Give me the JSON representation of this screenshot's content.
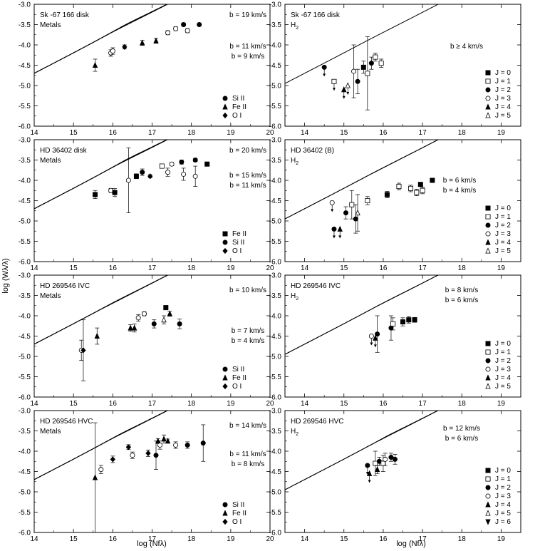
{
  "figure": {
    "x_axis_title": "log (Nfλ)",
    "y_axis_title": "log (Wλ/λ)"
  },
  "chart_data": [
    {
      "type": "scatter",
      "panel": "sk-metals",
      "title": "Sk -67 166  disk",
      "subtitle": "Metals",
      "xlim": [
        14,
        20
      ],
      "ylim": [
        -6.0,
        -3.0
      ],
      "xticks": [
        "14",
        "15",
        "16",
        "17",
        "18",
        "19",
        "20"
      ],
      "yticks": [
        "-3.0",
        "-3.5",
        "-4.0",
        "-4.5",
        "-5.0",
        "-5.5",
        "-6.0"
      ],
      "curve_labels": [
        "b = 19 km/s",
        "b = 11 km/s",
        "b = 9 km/s"
      ],
      "curves": [
        {
          "b": 19
        },
        {
          "b": 11
        },
        {
          "b": 9
        }
      ],
      "legend": [
        {
          "marker": "circle",
          "label": "Si II"
        },
        {
          "marker": "triangle",
          "label": "Fe II"
        },
        {
          "marker": "diamond",
          "label": "O I"
        }
      ],
      "points": [
        {
          "x": 15.55,
          "y": -4.5,
          "err": 0.15,
          "m": "triangle"
        },
        {
          "x": 15.95,
          "y": -4.2,
          "err": 0.08,
          "m": "open-circle"
        },
        {
          "x": 16.0,
          "y": -4.15,
          "err": 0.08,
          "m": "open-circle"
        },
        {
          "x": 16.3,
          "y": -4.05,
          "err": 0.05,
          "m": "diamond"
        },
        {
          "x": 16.75,
          "y": -3.95,
          "err": 0.06,
          "m": "triangle"
        },
        {
          "x": 17.1,
          "y": -3.9,
          "err": 0.06,
          "m": "triangle"
        },
        {
          "x": 17.4,
          "y": -3.7,
          "err": 0.05,
          "m": "open-circle"
        },
        {
          "x": 17.6,
          "y": -3.6,
          "err": 0.05,
          "m": "open-circle"
        },
        {
          "x": 17.8,
          "y": -3.5,
          "err": 0.04,
          "m": "circle"
        },
        {
          "x": 17.9,
          "y": -3.65,
          "err": 0.05,
          "m": "open-circle"
        },
        {
          "x": 18.2,
          "y": -3.5,
          "err": 0.03,
          "m": "circle"
        }
      ]
    },
    {
      "type": "scatter",
      "panel": "sk-h2",
      "title": "Sk -67 166  disk",
      "subtitle": "H2",
      "xlim": [
        13.5,
        19.5
      ],
      "ylim": [
        -6.0,
        -3.0
      ],
      "xticks": [
        "14",
        "15",
        "16",
        "17",
        "18",
        "19"
      ],
      "yticks": [
        "-3.0",
        "-3.5",
        "-4.0",
        "-4.5",
        "-5.0",
        "-5.5",
        "-6.0"
      ],
      "curve_labels": [
        "b ≥ 4 km/s"
      ],
      "curves": [
        {
          "b": 4
        }
      ],
      "legend": [
        {
          "marker": "square",
          "label": "J = 0"
        },
        {
          "marker": "open-square",
          "label": "J = 1"
        },
        {
          "marker": "circle",
          "label": "J = 2"
        },
        {
          "marker": "open-circle",
          "label": "J = 3"
        },
        {
          "marker": "triangle",
          "label": "J = 4"
        },
        {
          "marker": "open-triangle",
          "label": "J = 5"
        }
      ],
      "points": [
        {
          "x": 14.5,
          "y": -4.55,
          "err": 0,
          "m": "circle",
          "upper": true
        },
        {
          "x": 14.75,
          "y": -4.9,
          "err": 0,
          "m": "open-square",
          "upper": true
        },
        {
          "x": 15.0,
          "y": -5.1,
          "err": 0,
          "m": "triangle",
          "upper": true
        },
        {
          "x": 15.1,
          "y": -5.0,
          "err": 0,
          "m": "open-triangle",
          "upper": true
        },
        {
          "x": 15.25,
          "y": -4.65,
          "err": 0.65,
          "m": "open-circle"
        },
        {
          "x": 15.35,
          "y": -4.9,
          "err": 0.3,
          "m": "circle"
        },
        {
          "x": 15.5,
          "y": -4.55,
          "err": 0.15,
          "m": "square"
        },
        {
          "x": 15.6,
          "y": -4.7,
          "err": 0.9,
          "m": "open-square"
        },
        {
          "x": 15.7,
          "y": -4.45,
          "err": 0.15,
          "m": "circle"
        },
        {
          "x": 15.8,
          "y": -4.3,
          "err": 0.1,
          "m": "open-square"
        },
        {
          "x": 15.95,
          "y": -4.45,
          "err": 0.1,
          "m": "open-square"
        }
      ]
    },
    {
      "type": "scatter",
      "panel": "hd36-metals",
      "title": "HD 36402  disk",
      "subtitle": "Metals",
      "xlim": [
        14,
        20
      ],
      "ylim": [
        -6.0,
        -3.0
      ],
      "xticks": [
        "14",
        "15",
        "16",
        "17",
        "18",
        "19",
        "20"
      ],
      "yticks": [
        "-3.0",
        "-3.5",
        "-4.0",
        "-4.5",
        "-5.0",
        "-5.5",
        "-6.0"
      ],
      "curve_labels": [
        "b = 20 km/s",
        "b = 15 km/s",
        "b = 11 km/s"
      ],
      "curves": [
        {
          "b": 20
        },
        {
          "b": 15
        },
        {
          "b": 11
        }
      ],
      "legend": [
        {
          "marker": "square",
          "label": "Fe II"
        },
        {
          "marker": "circle",
          "label": "Si II"
        },
        {
          "marker": "diamond",
          "label": "O I"
        }
      ],
      "points": [
        {
          "x": 15.55,
          "y": -4.35,
          "err": 0.1,
          "m": "square"
        },
        {
          "x": 15.95,
          "y": -4.25,
          "err": 0.05,
          "m": "open-circle"
        },
        {
          "x": 16.05,
          "y": -4.3,
          "err": 0.1,
          "m": "square"
        },
        {
          "x": 16.4,
          "y": -4.0,
          "err": 0.8,
          "m": "open-circle"
        },
        {
          "x": 16.6,
          "y": -3.9,
          "err": 0.06,
          "m": "square"
        },
        {
          "x": 16.75,
          "y": -3.8,
          "err": 0.08,
          "m": "circle"
        },
        {
          "x": 17.25,
          "y": -3.65,
          "err": 0.05,
          "m": "open-square"
        },
        {
          "x": 17.4,
          "y": -3.8,
          "err": 0.1,
          "m": "open-circle"
        },
        {
          "x": 17.5,
          "y": -3.6,
          "err": 0.04,
          "m": "open-circle"
        },
        {
          "x": 17.75,
          "y": -3.55,
          "err": 0.05,
          "m": "circle"
        },
        {
          "x": 17.8,
          "y": -3.85,
          "err": 0.15,
          "m": "open-circle"
        },
        {
          "x": 18.1,
          "y": -3.5,
          "err": 0.04,
          "m": "circle"
        },
        {
          "x": 18.1,
          "y": -3.9,
          "err": 0.25,
          "m": "open-circle"
        },
        {
          "x": 18.4,
          "y": -3.6,
          "err": 0.04,
          "m": "square"
        },
        {
          "x": 16.95,
          "y": -3.9,
          "err": 0.04,
          "m": "diamond"
        }
      ]
    },
    {
      "type": "scatter",
      "panel": "hd36-h2",
      "title": "HD 36402 (B)",
      "subtitle": "H2",
      "xlim": [
        13.5,
        19.5
      ],
      "ylim": [
        -6.0,
        -3.0
      ],
      "xticks": [
        "14",
        "15",
        "16",
        "17",
        "18",
        "19"
      ],
      "yticks": [
        "-3.0",
        "-3.5",
        "-4.0",
        "-4.5",
        "-5.0",
        "-5.5",
        "-6.0"
      ],
      "curve_labels": [
        "b = 6 km/s",
        "b = 4 km/s"
      ],
      "curves": [
        {
          "b": 6
        },
        {
          "b": 4
        }
      ],
      "legend": [
        {
          "marker": "square",
          "label": "J = 0"
        },
        {
          "marker": "open-square",
          "label": "J = 1"
        },
        {
          "marker": "circle",
          "label": "J = 2"
        },
        {
          "marker": "open-circle",
          "label": "J = 3"
        },
        {
          "marker": "triangle",
          "label": "J = 4"
        },
        {
          "marker": "open-triangle",
          "label": "J = 5"
        }
      ],
      "points": [
        {
          "x": 14.7,
          "y": -4.55,
          "err": 0,
          "m": "open-circle",
          "upper": true
        },
        {
          "x": 14.75,
          "y": -5.2,
          "err": 0,
          "m": "circle",
          "upper": true
        },
        {
          "x": 14.9,
          "y": -5.2,
          "err": 0,
          "m": "triangle",
          "upper": true
        },
        {
          "x": 15.05,
          "y": -4.8,
          "err": 0.15,
          "m": "circle"
        },
        {
          "x": 15.2,
          "y": -4.6,
          "err": 0.35,
          "m": "open-square"
        },
        {
          "x": 15.3,
          "y": -4.95,
          "err": 0.35,
          "m": "circle"
        },
        {
          "x": 15.35,
          "y": -4.8,
          "err": 0.45,
          "m": "open-triangle"
        },
        {
          "x": 15.6,
          "y": -4.5,
          "err": 0.1,
          "m": "open-square"
        },
        {
          "x": 16.1,
          "y": -4.35,
          "err": 0.08,
          "m": "square"
        },
        {
          "x": 16.4,
          "y": -4.15,
          "err": 0.08,
          "m": "open-square"
        },
        {
          "x": 16.7,
          "y": -4.2,
          "err": 0.08,
          "m": "open-square"
        },
        {
          "x": 16.85,
          "y": -4.3,
          "err": 0.08,
          "m": "open-square"
        },
        {
          "x": 16.95,
          "y": -4.1,
          "err": 0.05,
          "m": "square"
        },
        {
          "x": 17.0,
          "y": -4.25,
          "err": 0.08,
          "m": "open-square"
        },
        {
          "x": 17.25,
          "y": -4.0,
          "err": 0.05,
          "m": "square"
        }
      ]
    },
    {
      "type": "scatter",
      "panel": "ivc-metals",
      "title": "HD 269546  IVC",
      "subtitle": "Metals",
      "xlim": [
        14,
        20
      ],
      "ylim": [
        -6.0,
        -3.0
      ],
      "xticks": [
        "14",
        "15",
        "16",
        "17",
        "18",
        "19",
        "20"
      ],
      "yticks": [
        "-3.0",
        "-3.5",
        "-4.0",
        "-4.5",
        "-5.0",
        "-5.5",
        "-6.0"
      ],
      "curve_labels": [
        "b = 10 km/s",
        "b = 7 km/s",
        "b = 4 km/s"
      ],
      "curves": [
        {
          "b": 10
        },
        {
          "b": 7
        },
        {
          "b": 4
        }
      ],
      "legend": [
        {
          "marker": "circle",
          "label": "Si II"
        },
        {
          "marker": "triangle",
          "label": "Fe II"
        },
        {
          "marker": "diamond",
          "label": "O I"
        }
      ],
      "points": [
        {
          "x": 15.2,
          "y": -4.85,
          "err": 0.25,
          "m": "open-circle"
        },
        {
          "x": 15.25,
          "y": -4.85,
          "err": 0.75,
          "m": "diamond"
        },
        {
          "x": 15.6,
          "y": -4.5,
          "err": 0.2,
          "m": "triangle"
        },
        {
          "x": 16.45,
          "y": -4.3,
          "err": 0.08,
          "m": "triangle"
        },
        {
          "x": 16.55,
          "y": -4.3,
          "err": 0.1,
          "m": "triangle"
        },
        {
          "x": 16.65,
          "y": -4.05,
          "err": 0.08,
          "m": "open-circle"
        },
        {
          "x": 16.8,
          "y": -3.95,
          "err": 0.05,
          "m": "open-circle"
        },
        {
          "x": 17.05,
          "y": -4.2,
          "err": 0.1,
          "m": "circle"
        },
        {
          "x": 17.3,
          "y": -4.1,
          "err": 0.1,
          "m": "open-triangle"
        },
        {
          "x": 17.35,
          "y": -3.8,
          "err": 0.05,
          "m": "square"
        },
        {
          "x": 17.45,
          "y": -3.95,
          "err": 0.06,
          "m": "triangle"
        },
        {
          "x": 17.7,
          "y": -4.2,
          "err": 0.12,
          "m": "circle"
        }
      ]
    },
    {
      "type": "scatter",
      "panel": "ivc-h2",
      "title": "HD 269546  IVC",
      "subtitle": "H2",
      "xlim": [
        13.5,
        19.5
      ],
      "ylim": [
        -6.0,
        -3.0
      ],
      "xticks": [
        "14",
        "15",
        "16",
        "17",
        "18",
        "19"
      ],
      "yticks": [
        "-3.0",
        "-3.5",
        "-4.0",
        "-4.5",
        "-5.0",
        "-5.5",
        "-6.0"
      ],
      "curve_labels": [
        "b = 8 km/s",
        "b = 6 km/s"
      ],
      "curves": [
        {
          "b": 8
        },
        {
          "b": 6
        }
      ],
      "legend": [
        {
          "marker": "square",
          "label": "J = 0"
        },
        {
          "marker": "open-square",
          "label": "J = 1"
        },
        {
          "marker": "circle",
          "label": "J = 2"
        },
        {
          "marker": "open-circle",
          "label": "J = 3"
        },
        {
          "marker": "triangle",
          "label": "J = 4"
        },
        {
          "marker": "open-triangle",
          "label": "J = 5"
        }
      ],
      "points": [
        {
          "x": 15.7,
          "y": -4.5,
          "err": 0,
          "m": "open-circle",
          "upper": true
        },
        {
          "x": 15.85,
          "y": -4.45,
          "err": 0.45,
          "m": "circle"
        },
        {
          "x": 15.8,
          "y": -4.55,
          "err": 0,
          "m": "triangle",
          "upper": true
        },
        {
          "x": 16.2,
          "y": -4.3,
          "err": 0.3,
          "m": "circle"
        },
        {
          "x": 16.25,
          "y": -4.2,
          "err": 0.15,
          "m": "open-square"
        },
        {
          "x": 16.5,
          "y": -4.15,
          "err": 0.1,
          "m": "square"
        },
        {
          "x": 16.65,
          "y": -4.1,
          "err": 0.08,
          "m": "square"
        },
        {
          "x": 16.8,
          "y": -4.1,
          "err": 0.06,
          "m": "square"
        }
      ]
    },
    {
      "type": "scatter",
      "panel": "hvc-metals",
      "title": "HD 269546  HVC",
      "subtitle": "Metals",
      "xlim": [
        14,
        20
      ],
      "ylim": [
        -6.0,
        -3.0
      ],
      "xticks": [
        "14",
        "15",
        "16",
        "17",
        "18",
        "19",
        "20"
      ],
      "yticks": [
        "-3.0",
        "-3.5",
        "-4.0",
        "-4.5",
        "-5.0",
        "-5.5",
        "-6.0"
      ],
      "curve_labels": [
        "b = 14 km/s",
        "b = 11 km/s",
        "b = 8 km/s"
      ],
      "curves": [
        {
          "b": 14
        },
        {
          "b": 11
        },
        {
          "b": 8
        }
      ],
      "legend": [
        {
          "marker": "circle",
          "label": "Si II"
        },
        {
          "marker": "triangle",
          "label": "Fe II"
        },
        {
          "marker": "diamond",
          "label": "O I"
        }
      ],
      "points": [
        {
          "x": 15.55,
          "y": -4.65,
          "err": 1.35,
          "m": "triangle"
        },
        {
          "x": 15.7,
          "y": -4.45,
          "err": 0.1,
          "m": "open-circle"
        },
        {
          "x": 16.0,
          "y": -4.2,
          "err": 0.08,
          "m": "diamond"
        },
        {
          "x": 16.4,
          "y": -3.9,
          "err": 0.06,
          "m": "diamond"
        },
        {
          "x": 16.5,
          "y": -4.1,
          "err": 0.08,
          "m": "open-circle"
        },
        {
          "x": 16.9,
          "y": -4.05,
          "err": 0.08,
          "m": "diamond"
        },
        {
          "x": 17.1,
          "y": -4.1,
          "err": 0.35,
          "m": "circle"
        },
        {
          "x": 17.15,
          "y": -3.75,
          "err": 0.06,
          "m": "triangle"
        },
        {
          "x": 17.2,
          "y": -3.85,
          "err": 0.1,
          "m": "open-circle"
        },
        {
          "x": 17.3,
          "y": -3.7,
          "err": 0.1,
          "m": "triangle"
        },
        {
          "x": 17.4,
          "y": -3.75,
          "err": 0.05,
          "m": "triangle"
        },
        {
          "x": 17.6,
          "y": -3.85,
          "err": 0.08,
          "m": "open-circle"
        },
        {
          "x": 17.9,
          "y": -3.85,
          "err": 0.08,
          "m": "circle"
        },
        {
          "x": 18.3,
          "y": -3.8,
          "err": 0.45,
          "m": "circle"
        }
      ]
    },
    {
      "type": "scatter",
      "panel": "hvc-h2",
      "title": "HD 269546  HVC",
      "subtitle": "H2",
      "xlim": [
        13.5,
        19.5
      ],
      "ylim": [
        -6.0,
        -3.0
      ],
      "xticks": [
        "14",
        "15",
        "16",
        "17",
        "18",
        "19"
      ],
      "yticks": [
        "-3.0",
        "-3.5",
        "-4.0",
        "-4.5",
        "-5.0",
        "-5.5",
        "-6.0"
      ],
      "curve_labels": [
        "b = 12 km/s",
        "b = 6 km/s"
      ],
      "curves": [
        {
          "b": 12
        },
        {
          "b": 6
        }
      ],
      "legend": [
        {
          "marker": "square",
          "label": "J = 0"
        },
        {
          "marker": "open-square",
          "label": "J = 1"
        },
        {
          "marker": "circle",
          "label": "J = 2"
        },
        {
          "marker": "open-circle",
          "label": "J = 3"
        },
        {
          "marker": "triangle",
          "label": "J = 4"
        },
        {
          "marker": "open-triangle",
          "label": "J = 5"
        },
        {
          "marker": "inverted-triangle",
          "label": "J = 6"
        }
      ],
      "points": [
        {
          "x": 15.6,
          "y": -4.35,
          "err": 0,
          "m": "circle",
          "upper": true
        },
        {
          "x": 15.65,
          "y": -4.55,
          "err": 0,
          "m": "triangle",
          "upper": true
        },
        {
          "x": 15.8,
          "y": -4.3,
          "err": 0.3,
          "m": "open-square"
        },
        {
          "x": 15.85,
          "y": -4.45,
          "err": 0.1,
          "m": "triangle"
        },
        {
          "x": 15.9,
          "y": -4.25,
          "err": 0.1,
          "m": "circle"
        },
        {
          "x": 16.0,
          "y": -4.3,
          "err": 0.2,
          "m": "open-square"
        },
        {
          "x": 16.05,
          "y": -4.2,
          "err": 0.15,
          "m": "open-circle"
        },
        {
          "x": 16.2,
          "y": -4.15,
          "err": 0.1,
          "m": "circle"
        },
        {
          "x": 16.3,
          "y": -4.2,
          "err": 0.12,
          "m": "circle"
        }
      ]
    }
  ]
}
